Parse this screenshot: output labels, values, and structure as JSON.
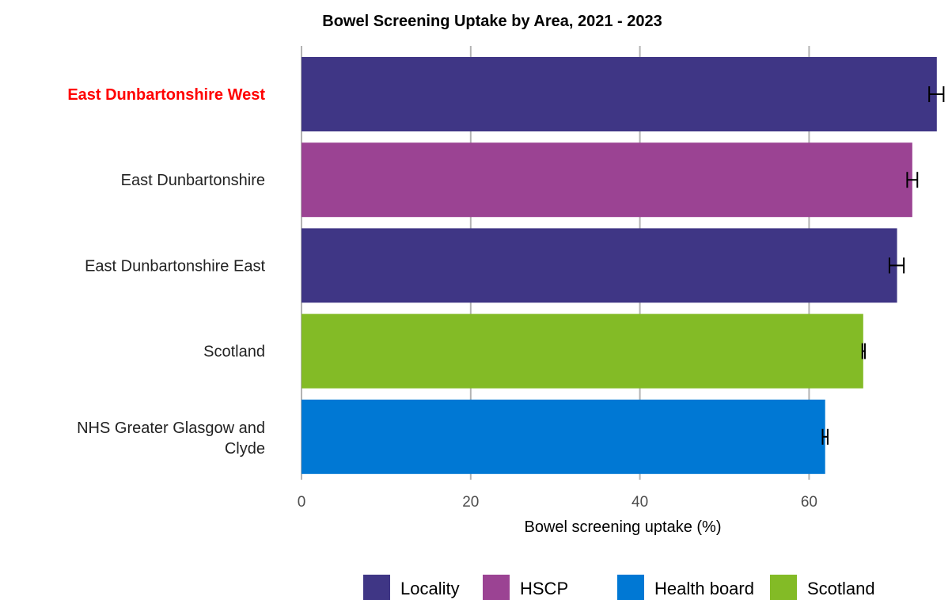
{
  "chart_data": {
    "type": "bar",
    "orientation": "horizontal",
    "title": "Bowel Screening Uptake by Area, 2021 - 2023",
    "xlabel": "Bowel screening uptake (%)",
    "ylabel": "",
    "xlim": [
      0,
      75
    ],
    "xticks": [
      0,
      20,
      40,
      60
    ],
    "grid": "vertical",
    "legend_position": "bottom",
    "highlight_category": "East Dunbartonshire West",
    "highlight_color": "#ff0000",
    "categories": [
      "East Dunbartonshire West",
      "East Dunbartonshire",
      "East Dunbartonshire East",
      "Scotland",
      "NHS Greater Glasgow and Clyde"
    ],
    "values": [
      75.1,
      72.2,
      70.4,
      66.4,
      61.9
    ],
    "ci_lower": [
      74.2,
      71.6,
      69.5,
      66.3,
      61.6
    ],
    "ci_upper": [
      75.9,
      72.8,
      71.2,
      66.6,
      62.2
    ],
    "groups": [
      "Locality",
      "HSCP",
      "Locality",
      "Scotland",
      "Health board"
    ],
    "legend": [
      {
        "name": "Locality",
        "color": "#3f3685"
      },
      {
        "name": "HSCP",
        "color": "#9b4393"
      },
      {
        "name": "Health board",
        "color": "#0078d4"
      },
      {
        "name": "Scotland",
        "color": "#83bb26"
      }
    ]
  }
}
